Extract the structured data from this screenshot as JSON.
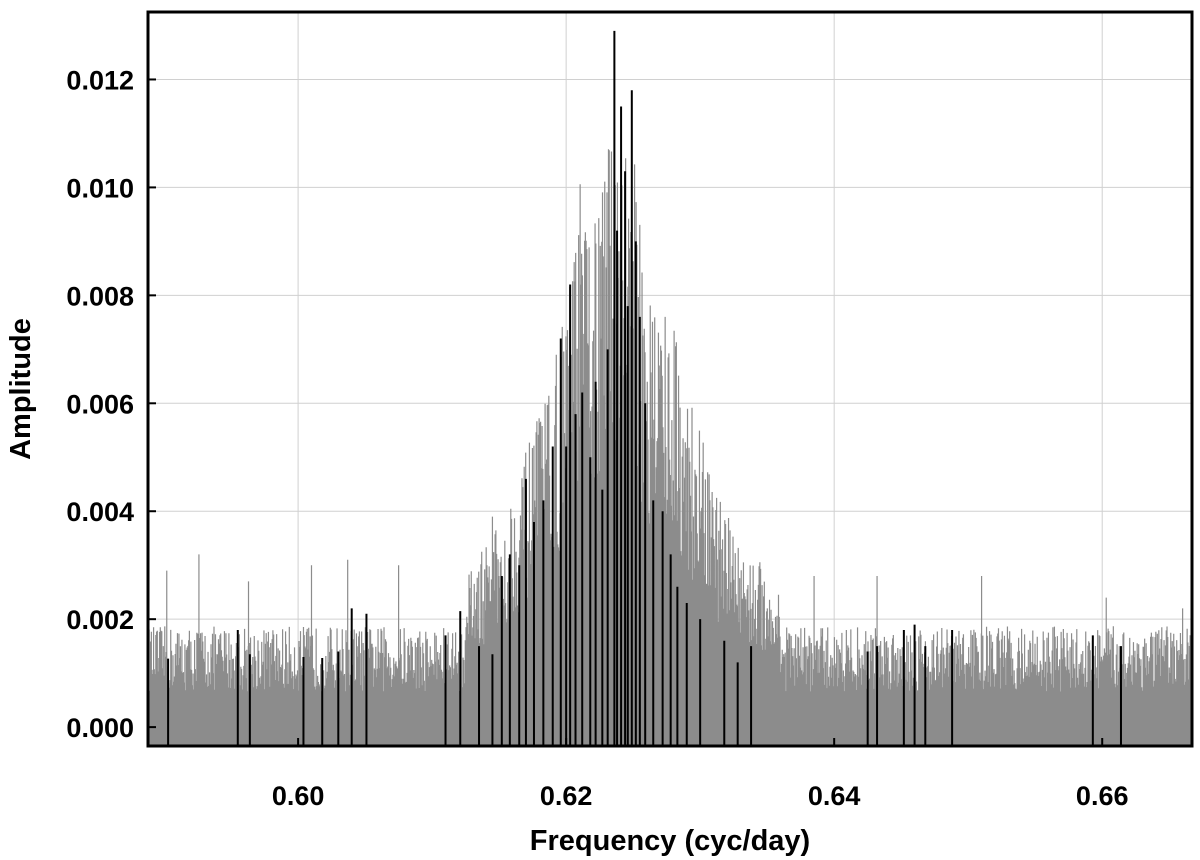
{
  "chart_data": {
    "type": "line",
    "title": "",
    "xlabel": "Frequency (cyc/day)",
    "ylabel": "Amplitude",
    "xlim": [
      0.5888,
      0.6667
    ],
    "ylim": [
      -0.00035,
      0.01325
    ],
    "x_ticks": [
      0.6,
      0.62,
      0.64,
      0.66
    ],
    "x_tick_labels": [
      "0.60",
      "0.62",
      "0.64",
      "0.66"
    ],
    "y_ticks": [
      0.0,
      0.002,
      0.004,
      0.006,
      0.008,
      0.01,
      0.012
    ],
    "y_tick_labels": [
      "0.000",
      "0.002",
      "0.004",
      "0.006",
      "0.008",
      "0.010",
      "0.012"
    ],
    "grid": true,
    "legend": "none",
    "series": [
      {
        "style": "gray dense spectrum",
        "color": "#8c8c8c",
        "baseline_max_typical": 0.0022,
        "baseline_spikes": [
          [
            0.5902,
            0.0029
          ],
          [
            0.5926,
            0.0032
          ],
          [
            0.5963,
            0.0027
          ],
          [
            0.601,
            0.003
          ],
          [
            0.6037,
            0.0031
          ],
          [
            0.6075,
            0.003
          ],
          [
            0.6145,
            0.0039
          ],
          [
            0.6385,
            0.0028
          ],
          [
            0.6432,
            0.0028
          ],
          [
            0.651,
            0.0028
          ],
          [
            0.6603,
            0.0024
          ],
          [
            0.666,
            0.0022
          ]
        ],
        "envelope": [
          [
            0.6125,
            0.0028
          ],
          [
            0.615,
            0.0038
          ],
          [
            0.617,
            0.0051
          ],
          [
            0.6185,
            0.0062
          ],
          [
            0.62,
            0.0078
          ],
          [
            0.621,
            0.0101
          ],
          [
            0.622,
            0.0095
          ],
          [
            0.623,
            0.0105
          ],
          [
            0.624,
            0.0121
          ],
          [
            0.625,
            0.0108
          ],
          [
            0.626,
            0.0082
          ],
          [
            0.6275,
            0.0081
          ],
          [
            0.629,
            0.0065
          ],
          [
            0.631,
            0.0045
          ],
          [
            0.633,
            0.0035
          ],
          [
            0.636,
            0.0026
          ]
        ]
      },
      {
        "style": "black window spikes",
        "color": "#000000",
        "spikes": [
          [
            0.5903,
            0.00127
          ],
          [
            0.5955,
            0.0018
          ],
          [
            0.5964,
            0.00135
          ],
          [
            0.6004,
            0.0013
          ],
          [
            0.6018,
            0.00128
          ],
          [
            0.603,
            0.0014
          ],
          [
            0.604,
            0.0022
          ],
          [
            0.6051,
            0.0021
          ],
          [
            0.611,
            0.0017
          ],
          [
            0.6121,
            0.00215
          ],
          [
            0.6135,
            0.0015
          ],
          [
            0.6145,
            0.00135
          ],
          [
            0.6152,
            0.0028
          ],
          [
            0.6158,
            0.0032
          ],
          [
            0.6165,
            0.003
          ],
          [
            0.617,
            0.0046
          ],
          [
            0.6176,
            0.0038
          ],
          [
            0.6183,
            0.0042
          ],
          [
            0.619,
            0.0052
          ],
          [
            0.6196,
            0.0072
          ],
          [
            0.62,
            0.0052
          ],
          [
            0.6203,
            0.0082
          ],
          [
            0.6207,
            0.0058
          ],
          [
            0.6212,
            0.0062
          ],
          [
            0.6218,
            0.005
          ],
          [
            0.6222,
            0.0064
          ],
          [
            0.6227,
            0.0044
          ],
          [
            0.6231,
            0.007
          ],
          [
            0.6236,
            0.0129
          ],
          [
            0.6238,
            0.0092
          ],
          [
            0.6241,
            0.0115
          ],
          [
            0.6244,
            0.0103
          ],
          [
            0.6246,
            0.0078
          ],
          [
            0.6249,
            0.0118
          ],
          [
            0.6252,
            0.009
          ],
          [
            0.6255,
            0.0076
          ],
          [
            0.6259,
            0.006
          ],
          [
            0.6265,
            0.0042
          ],
          [
            0.6272,
            0.004
          ],
          [
            0.6278,
            0.0032
          ],
          [
            0.6283,
            0.0026
          ],
          [
            0.629,
            0.0023
          ],
          [
            0.63,
            0.002
          ],
          [
            0.6318,
            0.0016
          ],
          [
            0.6328,
            0.0012
          ],
          [
            0.6338,
            0.0015
          ],
          [
            0.6425,
            0.0014
          ],
          [
            0.6432,
            0.0015
          ],
          [
            0.6452,
            0.0018
          ],
          [
            0.646,
            0.0019
          ],
          [
            0.6468,
            0.0015
          ],
          [
            0.6488,
            0.0018
          ],
          [
            0.6593,
            0.0017
          ],
          [
            0.6614,
            0.0015
          ]
        ]
      }
    ]
  }
}
